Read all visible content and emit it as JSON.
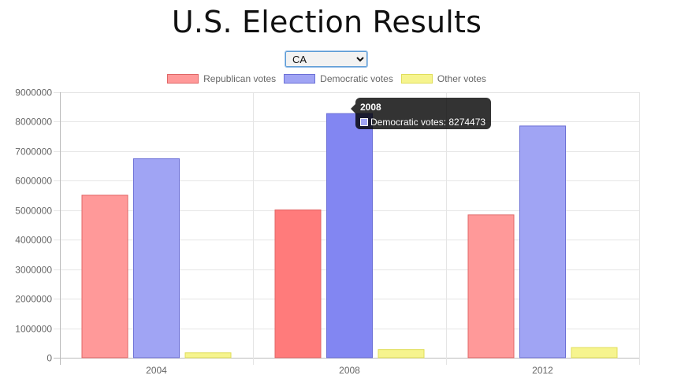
{
  "page": {
    "title": "U.S. Election Results"
  },
  "state_select": {
    "value": "CA",
    "options": [
      "CA"
    ]
  },
  "legend": [
    {
      "label": "Republican votes",
      "fill": "#ff9999",
      "stroke": "#e06666"
    },
    {
      "label": "Democratic votes",
      "fill": "#a0a4f4",
      "stroke": "#6b6fd6"
    },
    {
      "label": "Other votes",
      "fill": "#f6f48e",
      "stroke": "#e0de5a"
    }
  ],
  "tooltip": {
    "title": "2008",
    "text": "Democratic votes: 8274473",
    "swatch_color": "#a0a4f4"
  },
  "chart_data": {
    "type": "bar",
    "categories": [
      "2004",
      "2008",
      "2012"
    ],
    "series": [
      {
        "name": "Republican votes",
        "values": [
          5509826,
          5011781,
          4839958
        ],
        "color": "#ff9999",
        "hover_color": "#ff7b7b",
        "stroke": "#e06666"
      },
      {
        "name": "Democratic votes",
        "values": [
          6745485,
          8274473,
          7854285
        ],
        "color": "#a0a4f4",
        "hover_color": "#8286f2",
        "stroke": "#6b6fd6"
      },
      {
        "name": "Other votes",
        "values": [
          166541,
          276632,
          344304
        ],
        "color": "#f6f48e",
        "hover_color": "#f6f48e",
        "stroke": "#e0de5a"
      }
    ],
    "highlight": {
      "category": "2008"
    },
    "yticks": [
      "0",
      "1000000",
      "2000000",
      "3000000",
      "4000000",
      "5000000",
      "6000000",
      "7000000",
      "8000000",
      "9000000"
    ],
    "ylim": [
      0,
      9000000
    ],
    "grid": true,
    "legend_position": "top-center"
  }
}
